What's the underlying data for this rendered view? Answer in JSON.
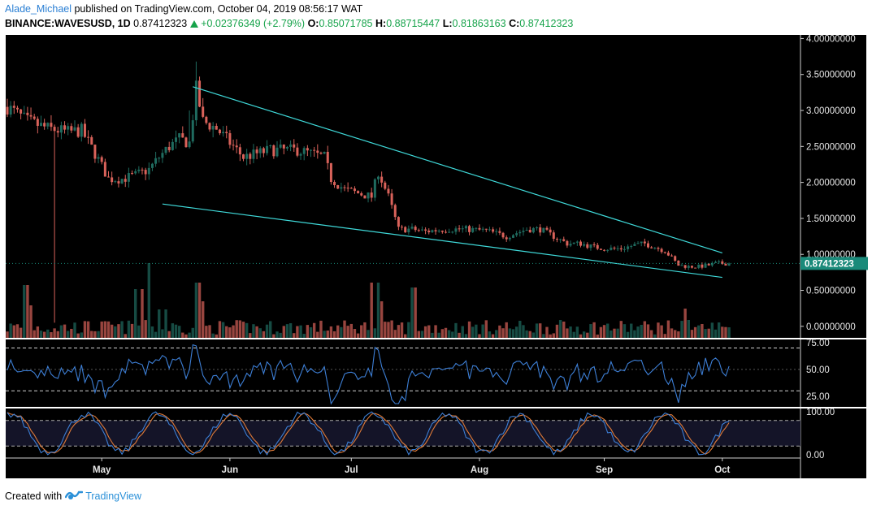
{
  "header": {
    "author": "Alade_Michael",
    "published_text": " published on TradingView.com, October 04, 2019 08:56:17 WAT",
    "symbol": "BINANCE:WAVESUSD, 1D",
    "last": "0.87412323",
    "change": "+0.02376349 (+2.79%)",
    "open_label": "O:",
    "open": "0.85071785",
    "high_label": "H:",
    "high": "0.88715447",
    "low_label": "L:",
    "low": "0.81863163",
    "close_label": "C:",
    "close": "0.87412323"
  },
  "footer": {
    "created_with": "Created with",
    "brand": "TradingView"
  },
  "colors": {
    "background": "#000000",
    "up": "#1f6b5f",
    "down": "#d9625a",
    "trendline": "#3fd9d9",
    "rsi": "#3d7fd6",
    "stoch_k": "#3d7fd6",
    "stoch_d": "#e07b39",
    "price_badge": "#1a8a7a"
  },
  "chart_data": {
    "type": "candlestick",
    "price_axis": {
      "ticks": [
        "4.00000000",
        "3.50000000",
        "3.00000000",
        "2.50000000",
        "2.00000000",
        "1.50000000",
        "1.00000000",
        "0.50000000",
        "0.00000000"
      ],
      "ylim": [
        -0.16,
        4.05
      ],
      "current_price_label": "0.87412323"
    },
    "time_axis": {
      "labels": [
        "May",
        "Jun",
        "Jul",
        "Aug",
        "Sep",
        "Oct"
      ]
    },
    "price_path": [
      [
        0,
        3.05
      ],
      [
        6,
        2.85
      ],
      [
        12,
        2.75
      ],
      [
        18,
        2.7
      ],
      [
        22,
        2.72
      ],
      [
        26,
        2.4
      ],
      [
        30,
        2.05
      ],
      [
        34,
        2.05
      ],
      [
        38,
        2.1
      ],
      [
        42,
        2.18
      ],
      [
        45,
        2.35
      ],
      [
        48,
        2.5
      ],
      [
        51,
        2.6
      ],
      [
        54,
        2.55
      ],
      [
        56,
        3.3
      ],
      [
        58,
        2.85
      ],
      [
        62,
        2.75
      ],
      [
        66,
        2.55
      ],
      [
        70,
        2.35
      ],
      [
        74,
        2.4
      ],
      [
        78,
        2.45
      ],
      [
        82,
        2.45
      ],
      [
        86,
        2.45
      ],
      [
        90,
        2.4
      ],
      [
        94,
        2.35
      ],
      [
        96,
        2.05
      ],
      [
        100,
        1.9
      ],
      [
        104,
        1.85
      ],
      [
        108,
        1.8
      ],
      [
        110,
        2.15
      ],
      [
        113,
        1.8
      ],
      [
        116,
        1.35
      ],
      [
        120,
        1.35
      ],
      [
        124,
        1.32
      ],
      [
        130,
        1.35
      ],
      [
        136,
        1.35
      ],
      [
        142,
        1.33
      ],
      [
        148,
        1.25
      ],
      [
        154,
        1.35
      ],
      [
        158,
        1.35
      ],
      [
        162,
        1.25
      ],
      [
        166,
        1.15
      ],
      [
        170,
        1.15
      ],
      [
        174,
        1.1
      ],
      [
        178,
        1.08
      ],
      [
        182,
        1.08
      ],
      [
        186,
        1.13
      ],
      [
        189,
        1.15
      ],
      [
        192,
        1.1
      ],
      [
        195,
        1.05
      ],
      [
        197,
        0.95
      ],
      [
        199,
        0.85
      ],
      [
        202,
        0.83
      ],
      [
        205,
        0.83
      ],
      [
        208,
        0.85
      ],
      [
        210,
        0.874
      ]
    ],
    "trendlines": [
      {
        "from": [
          55,
          3.33
        ],
        "to": [
          212,
          1.02
        ]
      },
      {
        "from": [
          46,
          1.7
        ],
        "to": [
          212,
          0.68
        ]
      }
    ],
    "panes": [
      {
        "name": "rsi",
        "levels": [
          "75.00",
          "50.00",
          "25.00"
        ],
        "dashed": [
          "70",
          "30"
        ]
      },
      {
        "name": "stochastic",
        "levels": [
          "100.00",
          "0.00"
        ],
        "dashed": [
          "80",
          "20"
        ]
      }
    ]
  }
}
